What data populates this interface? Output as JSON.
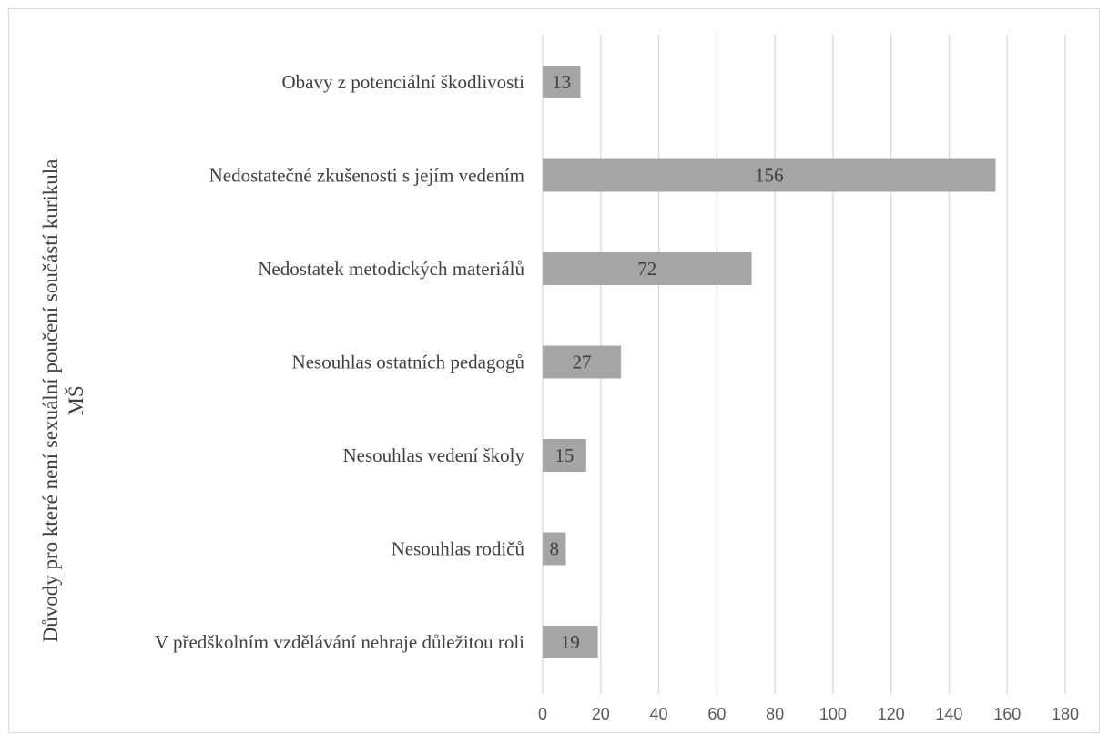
{
  "chart_data": {
    "type": "bar",
    "orientation": "horizontal",
    "categories": [
      "Obavy z potenciální škodlivosti",
      "Nedostatečné zkušenosti s jejím vedením",
      "Nedostatek metodických materiálů",
      "Nesouhlas ostatních pedagogů",
      "Nesouhlas vedení školy",
      "Nesouhlas rodičů",
      "V předškolním vzdělávání nehraje důležitou roli"
    ],
    "values": [
      13,
      156,
      72,
      27,
      15,
      8,
      19
    ],
    "data_labels": [
      "13",
      "156",
      "72",
      "27",
      "15",
      "8",
      "19"
    ],
    "title": "",
    "xlabel": "",
    "ylabel": [
      "Důvody pro které není sexuální poučení součástí kurikula",
      "MŠ"
    ],
    "xlim": [
      0,
      180
    ],
    "x_ticks": [
      0,
      20,
      40,
      60,
      80,
      100,
      120,
      140,
      160,
      180
    ],
    "x_tick_labels": [
      "0",
      "20",
      "40",
      "60",
      "80",
      "100",
      "120",
      "140",
      "160",
      "180"
    ],
    "grid": "vertical",
    "legend": "none",
    "colors": {
      "bar": "#a5a5a5",
      "grid": "#d9d9d9",
      "text": "#404040",
      "tick_text": "#595959"
    }
  }
}
